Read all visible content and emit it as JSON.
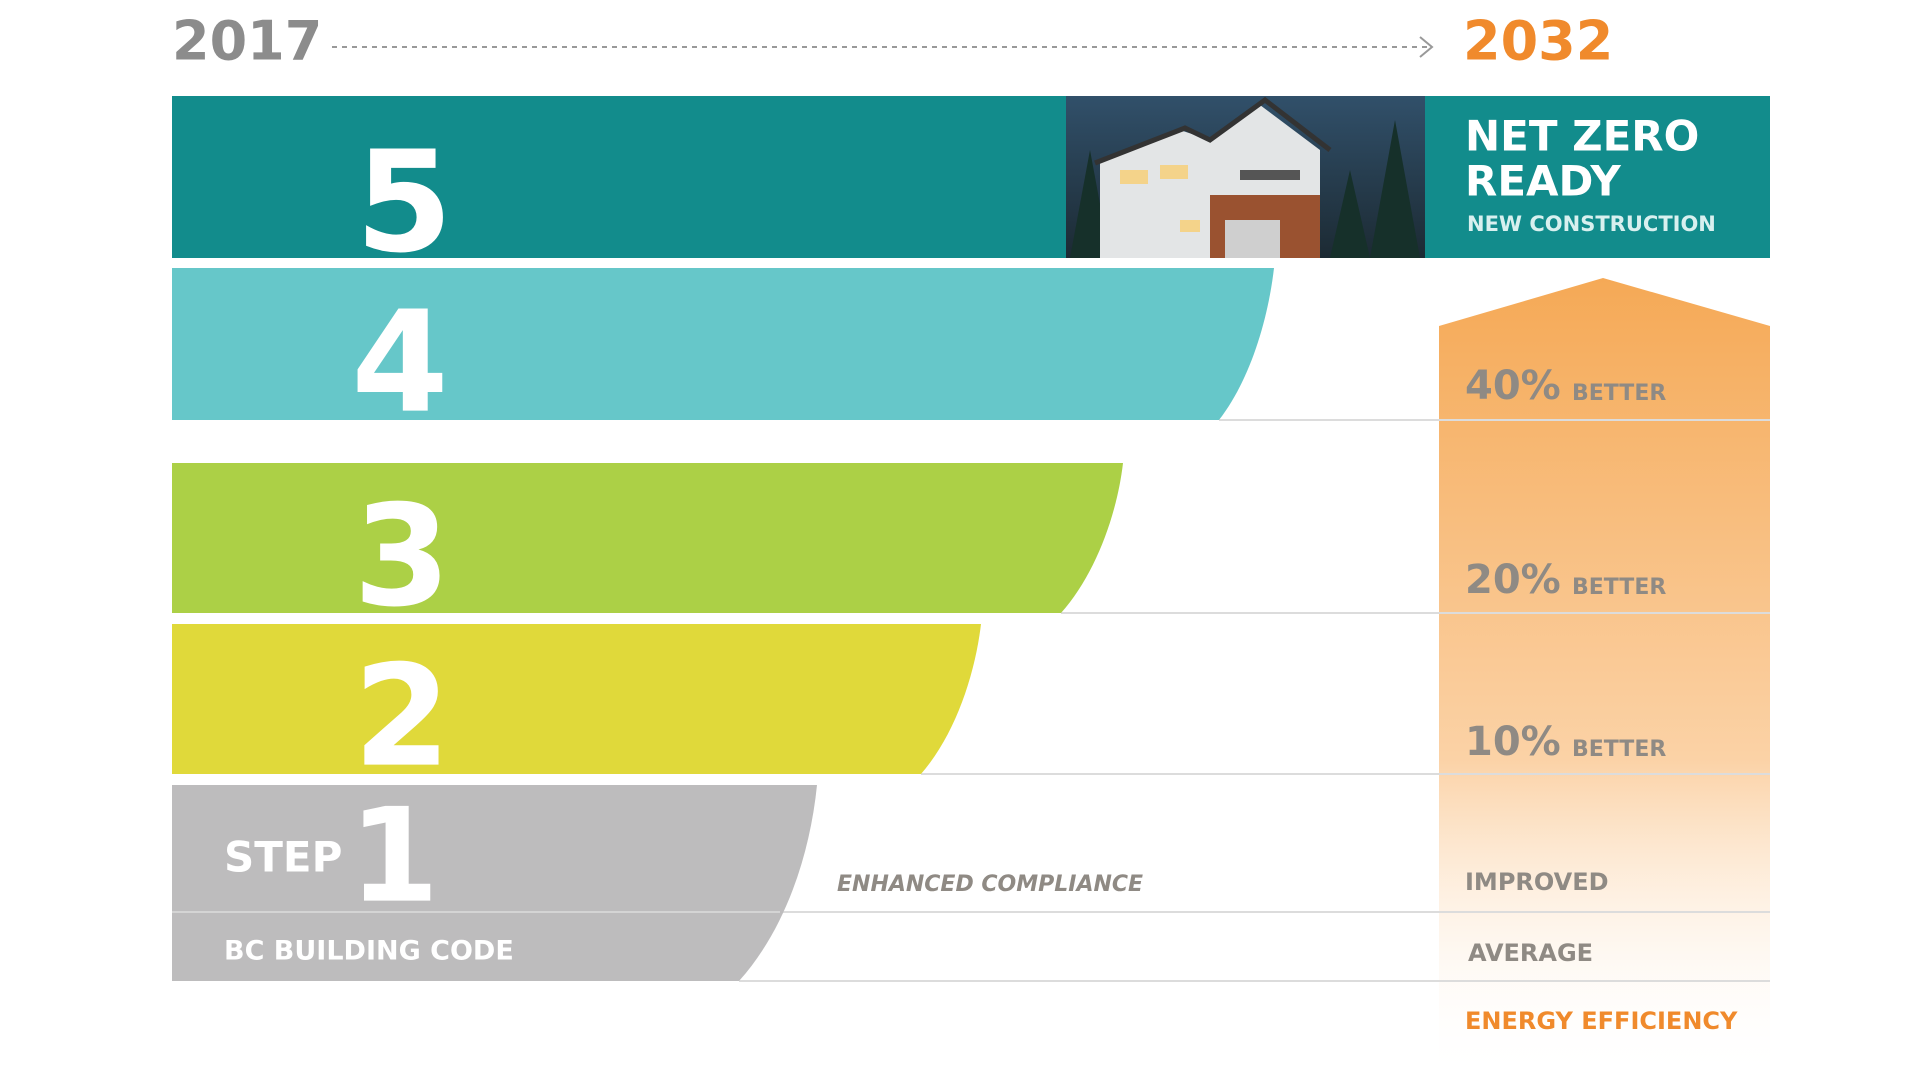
{
  "timeline": {
    "start": "2017",
    "end": "2032"
  },
  "top": {
    "title_line1": "NET ZERO",
    "title_line2": "READY",
    "subtitle": "NEW CONSTRUCTION"
  },
  "steps": [
    {
      "number": "5"
    },
    {
      "number": "4"
    },
    {
      "number": "3"
    },
    {
      "number": "2"
    },
    {
      "prefix": "STEP",
      "number": "1",
      "label": "BC BUILDING CODE",
      "note": "ENHANCED COMPLIANCE"
    }
  ],
  "efficiency": {
    "levels": [
      {
        "percent": "40%",
        "word": "BETTER"
      },
      {
        "percent": "20%",
        "word": "BETTER"
      },
      {
        "percent": "10%",
        "word": "BETTER"
      }
    ],
    "improved": "IMPROVED",
    "average": "AVERAGE",
    "caption": "ENERGY EFFICIENCY"
  }
}
